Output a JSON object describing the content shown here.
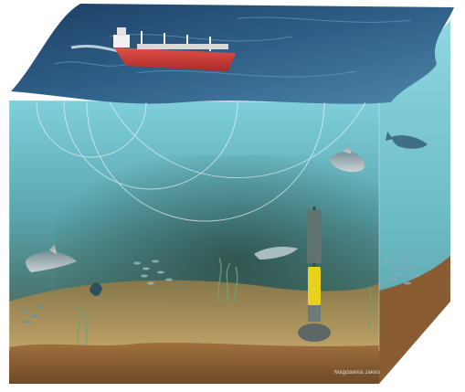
{
  "credit": "Magdalena Jakes",
  "colors": {
    "sea_surface": "#2f5f88",
    "water_light": "#6fc3cf",
    "water_deep": "#3f6a6a",
    "seabed": "#b08a52",
    "ship_hull": "#d8433a",
    "hydrophone_band": "#e8d21e"
  },
  "icons": [
    "ship",
    "dolphin",
    "fish-school",
    "seaweed",
    "hydrophone",
    "sound-waves"
  ]
}
